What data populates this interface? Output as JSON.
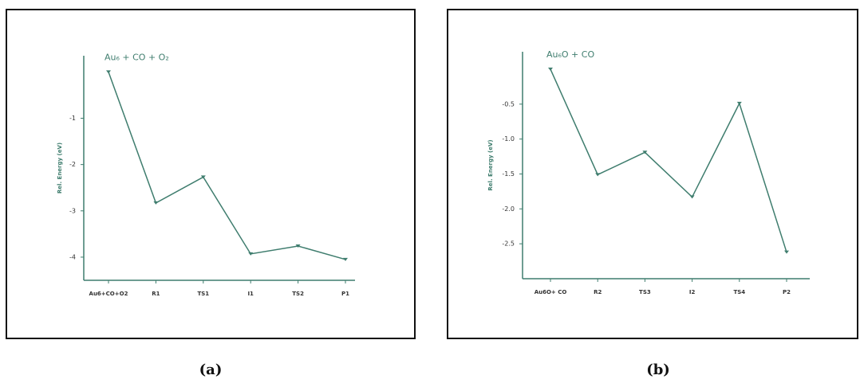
{
  "chart_data": [
    {
      "type": "line",
      "title": "Au₆ + CO + O₂",
      "caption": "(a)",
      "y_label": "Rel. Energy (eV)",
      "categories": [
        "Au6+CO+O2",
        "R1",
        "TS1",
        "I1",
        "TS2",
        "P1"
      ],
      "values": [
        0,
        -2.83,
        -2.27,
        -3.93,
        -3.76,
        -4.05
      ],
      "color": "#3f7d6e",
      "ylim": [
        -4.5,
        0.35
      ],
      "yticks": [
        -1,
        -2,
        -3,
        -4
      ]
    },
    {
      "type": "line",
      "title": "Au₆O + CO",
      "caption": "(b)",
      "y_label": "Rel. Energy (eV)",
      "categories": [
        "Au6O+ CO",
        "R2",
        "TS3",
        "I2",
        "TS4",
        "P2"
      ],
      "values": [
        0,
        -1.51,
        -1.19,
        -1.83,
        -0.49,
        -2.62
      ],
      "color": "#3f7d6e",
      "ylim": [
        -3.0,
        0.25
      ],
      "yticks": [
        -0.5,
        {
          "value": -1,
          "label": "-1.0"
        },
        -1.5,
        {
          "value": -2,
          "label": "-2.0"
        },
        -2.5
      ]
    }
  ]
}
